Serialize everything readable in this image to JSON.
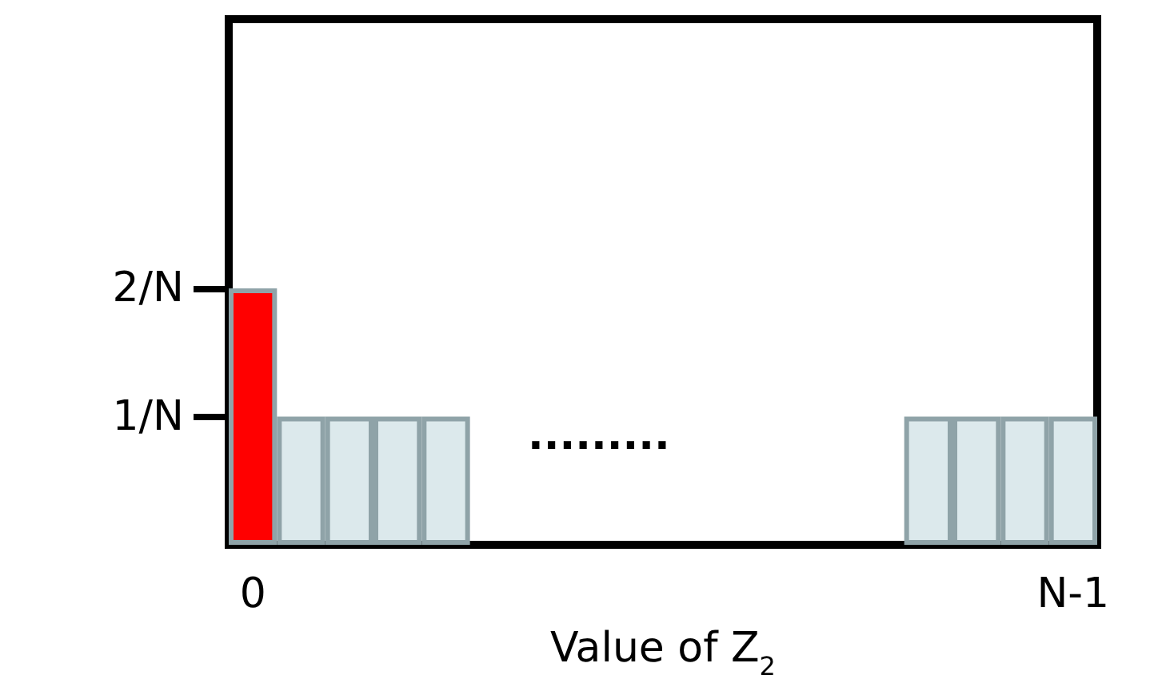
{
  "chart_data": {
    "type": "bar",
    "xlabel": "Value of Z$_{2}$",
    "categories": [
      "0",
      null,
      null,
      null,
      null,
      null,
      null,
      null,
      null,
      null,
      null,
      null,
      null,
      null,
      null,
      null,
      null,
      "N-1"
    ],
    "values": [
      2,
      1,
      1,
      1,
      1,
      null,
      null,
      null,
      null,
      null,
      null,
      null,
      null,
      null,
      1,
      1,
      1,
      1
    ],
    "colors": [
      "#ff0000",
      "#dce9ec",
      "#dce9ec",
      "#dce9ec",
      "#dce9ec",
      "#dce9ec",
      "#dce9ec",
      "#dce9ec",
      "#dce9ec",
      "#dce9ec",
      "#dce9ec",
      "#dce9ec",
      "#dce9ec",
      "#dce9ec",
      "#dce9ec",
      "#dce9ec",
      "#dce9ec",
      "#dce9ec"
    ],
    "ylim": [
      0,
      4.1
    ],
    "yticks": [
      {
        "value": 1,
        "label": "1/N"
      },
      {
        "value": 2,
        "label": "2/N"
      }
    ],
    "annotations": [
      "........."
    ],
    "grid": false
  }
}
